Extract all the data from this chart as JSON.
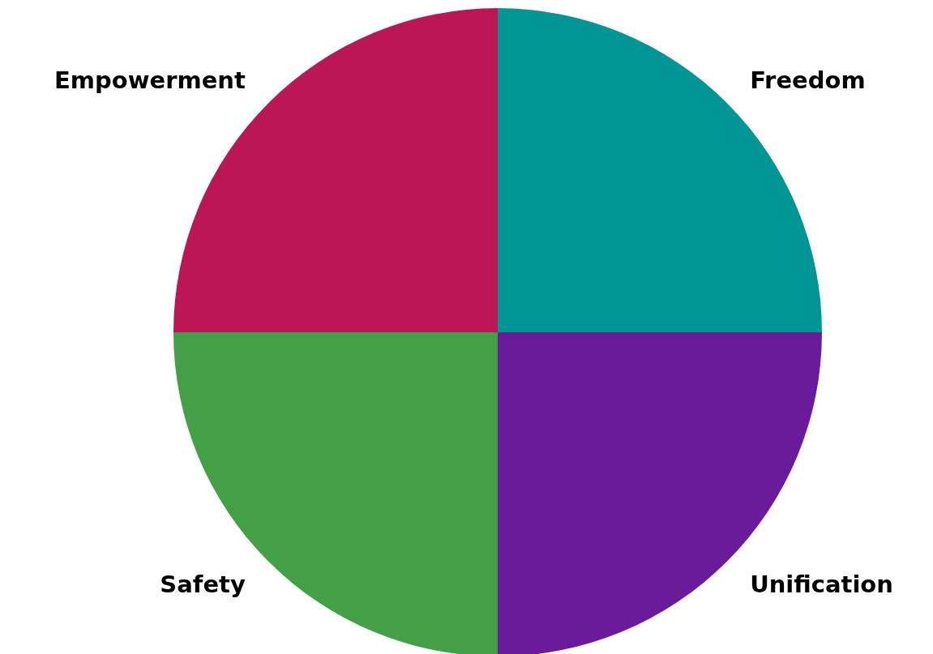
{
  "chart_data": {
    "type": "pie",
    "categories": [
      "Freedom",
      "Empowerment",
      "Safety",
      "Unification"
    ],
    "values": [
      25,
      25,
      25,
      25
    ],
    "colors": [
      "#009696",
      "#bd1656",
      "#43a047",
      "#6a1b9a"
    ]
  }
}
